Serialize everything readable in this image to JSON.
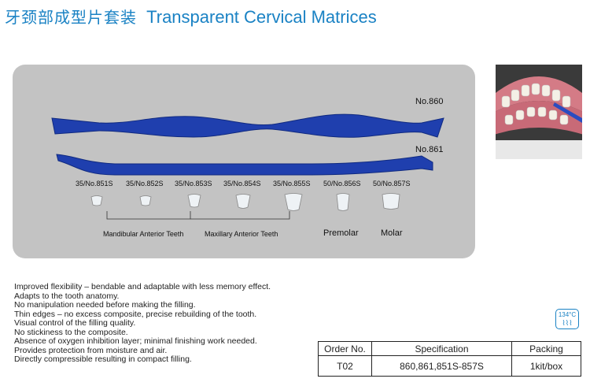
{
  "title": {
    "chinese": "牙颈部成型片套装",
    "english": "Transparent Cervical Matrices"
  },
  "instruments": [
    {
      "label": "No.860"
    },
    {
      "label": "No.861"
    }
  ],
  "teeth": [
    {
      "label": "35/No.851S"
    },
    {
      "label": "35/No.852S"
    },
    {
      "label": "35/No.853S"
    },
    {
      "label": "35/No.854S"
    },
    {
      "label": "35/No.855S"
    },
    {
      "label": "50/No.856S"
    },
    {
      "label": "50/No.857S"
    }
  ],
  "groups": {
    "mandibular": "Mandibular Anterior Teeth",
    "maxillary": "Maxillary Anterior Teeth",
    "premolar": "Premolar",
    "molar": "Molar"
  },
  "features": [
    "Improved flexibility – bendable and adaptable with less memory effect.",
    "Adapts to the tooth anatomy.",
    "No manipulation needed before making the filling.",
    "Thin edges – no excess composite, precise  rebuilding of the tooth.",
    "Visual control of the filling quality.",
    "No stickiness to the composite.",
    "Absence of oxygen inhibition layer; minimal finishing work needed.",
    "Provides protection from moisture and air.",
    "Directly compressible resulting in compact filling."
  ],
  "badge": {
    "temp": "134°C",
    "symbol": "⌇⌇⌇"
  },
  "table": {
    "headers": [
      "Order No.",
      "Specification",
      "Packing"
    ],
    "row": [
      "T02",
      "860,861,851S-857S",
      "1kit/box"
    ]
  },
  "colors": {
    "title": "#1a82c4",
    "instrument": "#1f3fae",
    "panel": "#c3c3c3"
  }
}
